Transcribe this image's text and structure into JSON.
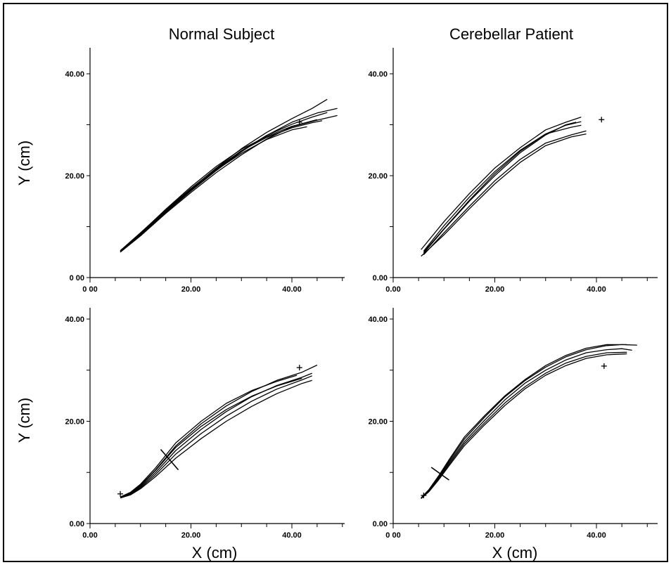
{
  "column_titles": [
    "Normal Subject",
    "Cerebellar Patient"
  ],
  "chart_data": [
    {
      "type": "line",
      "panel": "top-left",
      "title": "Normal Subject",
      "xlabel": "",
      "ylabel": "Y (cm)",
      "xlim": [
        0,
        50
      ],
      "ylim": [
        0,
        45
      ],
      "x_ticks": [
        0,
        20,
        40
      ],
      "x_tick_labels": [
        "0 00",
        "20.00",
        "40.00"
      ],
      "y_ticks": [
        0,
        20,
        40
      ],
      "y_tick_labels": [
        "0 00",
        "20.00",
        "40.00"
      ],
      "target_markers": [
        {
          "x": 41.5,
          "y": 30.5
        }
      ],
      "series": [
        {
          "x": [
            6,
            10,
            15,
            20,
            25,
            30,
            35,
            40,
            44,
            47
          ],
          "y": [
            5.2,
            8.6,
            13.1,
            17.4,
            21.5,
            25.3,
            28.5,
            31.2,
            33.2,
            35.0
          ]
        },
        {
          "x": [
            6,
            10,
            15,
            20,
            25,
            30,
            35,
            40,
            45,
            49
          ],
          "y": [
            5.0,
            8.3,
            12.8,
            17.0,
            21.0,
            24.7,
            27.9,
            30.5,
            32.3,
            33.2
          ]
        },
        {
          "x": [
            6,
            10,
            15,
            20,
            25,
            30,
            35,
            40,
            44,
            47
          ],
          "y": [
            5.1,
            8.4,
            12.9,
            17.2,
            21.2,
            24.9,
            27.9,
            30.1,
            31.5,
            32.4
          ]
        },
        {
          "x": [
            6,
            10,
            15,
            20,
            25,
            30,
            35,
            40,
            45,
            49
          ],
          "y": [
            5.0,
            8.2,
            12.6,
            16.7,
            20.6,
            24.1,
            27.2,
            29.6,
            30.9,
            31.8
          ]
        },
        {
          "x": [
            6,
            10,
            15,
            20,
            25,
            30,
            35,
            40,
            44,
            46
          ],
          "y": [
            5.3,
            8.8,
            13.3,
            17.5,
            21.4,
            24.9,
            27.5,
            29.4,
            30.4,
            30.8
          ]
        },
        {
          "x": [
            6,
            10,
            15,
            20,
            25,
            30,
            35,
            40,
            43
          ],
          "y": [
            5.2,
            8.5,
            13.0,
            17.2,
            21.1,
            24.4,
            27.1,
            29.0,
            29.6
          ]
        },
        {
          "x": [
            6,
            10,
            15,
            20,
            25,
            30,
            35,
            40,
            45
          ],
          "y": [
            5.1,
            8.7,
            13.4,
            17.8,
            21.8,
            25.2,
            27.7,
            29.7,
            31.0
          ]
        }
      ]
    },
    {
      "type": "line",
      "panel": "top-right",
      "title": "Cerebellar Patient",
      "xlabel": "",
      "ylabel": "",
      "xlim": [
        0,
        52
      ],
      "ylim": [
        0,
        45
      ],
      "x_ticks": [
        0,
        20,
        40
      ],
      "x_tick_labels": [
        "0.00",
        "20.00",
        "40.00"
      ],
      "y_ticks": [
        0,
        20,
        40
      ],
      "y_tick_labels": [
        "0.00",
        "20.00",
        "40.00"
      ],
      "target_markers": [
        {
          "x": 41,
          "y": 31
        }
      ],
      "series": [
        {
          "x": [
            5.5,
            10,
            15,
            20,
            25,
            30,
            34,
            37
          ],
          "y": [
            5.5,
            11,
            16.5,
            21.5,
            25.5,
            29,
            30.5,
            31.5
          ]
        },
        {
          "x": [
            6,
            10,
            15,
            20,
            25,
            30,
            34,
            37
          ],
          "y": [
            5.0,
            9.6,
            15.2,
            20.4,
            24.8,
            28.2,
            29.9,
            30.6
          ]
        },
        {
          "x": [
            6,
            10,
            15,
            20,
            25,
            30,
            35,
            38
          ],
          "y": [
            4.5,
            8.8,
            14.0,
            19.0,
            23.2,
            26.4,
            28.0,
            28.8
          ]
        },
        {
          "x": [
            5.5,
            10,
            15,
            20,
            25,
            30,
            35,
            38
          ],
          "y": [
            4.2,
            8.4,
            13.5,
            18.4,
            22.6,
            25.9,
            27.6,
            28.2
          ]
        },
        {
          "x": [
            6,
            10,
            15,
            20,
            25,
            30,
            34,
            36
          ],
          "y": [
            4.8,
            9.5,
            15.0,
            20.0,
            24.5,
            28.0,
            30.0,
            30.5
          ]
        },
        {
          "x": [
            6,
            10,
            15,
            20,
            25,
            30,
            35,
            37
          ],
          "y": [
            5.2,
            10.2,
            15.8,
            20.8,
            25.0,
            28.2,
            29.5,
            29.9
          ]
        }
      ]
    },
    {
      "type": "line",
      "panel": "bottom-left",
      "title": "",
      "xlabel": "X (cm)",
      "ylabel": "Y (cm)",
      "xlim": [
        0,
        50
      ],
      "ylim": [
        0,
        42
      ],
      "x_ticks": [
        0,
        20,
        40
      ],
      "x_tick_labels": [
        "0.00",
        "20.00",
        "40.00"
      ],
      "y_ticks": [
        0,
        20,
        40
      ],
      "y_tick_labels": [
        "0.00",
        "20.00",
        "40.00"
      ],
      "target_markers": [
        {
          "x": 41.5,
          "y": 30.5
        },
        {
          "x": 6,
          "y": 5.8
        }
      ],
      "annotation_strokes": [
        {
          "x": [
            14,
            17.5
          ],
          "y": [
            14.5,
            10.5
          ]
        }
      ],
      "series": [
        {
          "x": [
            6,
            8,
            10,
            13,
            17,
            22,
            27,
            32,
            37,
            42,
            45
          ],
          "y": [
            5.2,
            6.0,
            7.5,
            10.5,
            15.2,
            19.5,
            23.0,
            25.8,
            28.0,
            29.6,
            31.0
          ]
        },
        {
          "x": [
            6,
            8,
            10,
            13,
            17,
            22,
            27,
            32,
            37,
            42,
            44
          ],
          "y": [
            5.1,
            5.8,
            7.2,
            10.0,
            14.3,
            18.4,
            21.9,
            24.8,
            27.0,
            28.6,
            29.4
          ]
        },
        {
          "x": [
            6,
            8,
            10,
            13,
            17,
            22,
            27,
            32,
            37,
            42,
            44
          ],
          "y": [
            5.0,
            5.7,
            7.0,
            9.6,
            13.6,
            17.6,
            21.0,
            23.9,
            26.3,
            28.1,
            28.9
          ]
        },
        {
          "x": [
            6,
            8,
            10,
            13,
            17,
            22,
            27,
            32,
            37,
            42
          ],
          "y": [
            5.1,
            5.9,
            7.4,
            10.4,
            14.9,
            19.0,
            22.3,
            24.9,
            26.9,
            28.4
          ]
        },
        {
          "x": [
            6,
            8,
            10,
            13,
            17,
            22,
            27,
            32,
            37,
            42,
            44
          ],
          "y": [
            5.0,
            5.6,
            6.8,
            9.2,
            12.8,
            16.6,
            20.0,
            22.9,
            25.4,
            27.4,
            28.0
          ]
        },
        {
          "x": [
            6,
            8,
            10,
            13,
            17,
            22,
            27,
            32,
            37,
            41
          ],
          "y": [
            5.2,
            6.1,
            7.7,
            10.9,
            15.8,
            20.0,
            23.5,
            26.0,
            27.8,
            29.0
          ]
        }
      ]
    },
    {
      "type": "line",
      "panel": "bottom-right",
      "title": "",
      "xlabel": "X (cm)",
      "ylabel": "",
      "xlim": [
        0,
        52
      ],
      "ylim": [
        0,
        42
      ],
      "x_ticks": [
        0,
        20,
        40
      ],
      "x_tick_labels": [
        "0 00",
        "20.00",
        "40.00"
      ],
      "y_ticks": [
        0,
        20,
        40
      ],
      "y_tick_labels": [
        "0.00",
        "20.00",
        "40.00"
      ],
      "target_markers": [
        {
          "x": 41.5,
          "y": 30.8
        },
        {
          "x": 6,
          "y": 5.5
        }
      ],
      "annotation_strokes": [
        {
          "x": [
            7.5,
            11
          ],
          "y": [
            11,
            8.5
          ]
        }
      ],
      "series": [
        {
          "x": [
            5.5,
            7,
            9,
            11,
            14,
            18,
            22,
            26,
            30,
            34,
            38,
            42,
            45,
            48
          ],
          "y": [
            5.0,
            6.5,
            9.2,
            12.2,
            16.5,
            20.8,
            24.8,
            28.0,
            30.6,
            32.6,
            34.0,
            34.8,
            35.0,
            34.9
          ]
        },
        {
          "x": [
            5.5,
            7,
            9,
            11,
            14,
            18,
            22,
            26,
            30,
            34,
            38,
            42,
            45,
            47
          ],
          "y": [
            5.0,
            6.4,
            9.0,
            11.9,
            16.0,
            20.2,
            24.2,
            27.5,
            30.0,
            32.0,
            33.4,
            34.0,
            34.2,
            33.9
          ]
        },
        {
          "x": [
            5.5,
            7,
            9,
            11,
            14,
            18,
            22,
            26,
            30,
            34,
            38,
            42,
            46
          ],
          "y": [
            4.9,
            6.3,
            8.8,
            11.6,
            15.6,
            19.7,
            23.6,
            26.8,
            29.4,
            31.4,
            32.7,
            33.4,
            33.5
          ]
        },
        {
          "x": [
            5.5,
            7,
            9,
            11,
            14,
            18,
            22,
            26,
            30,
            34,
            38,
            42,
            46
          ],
          "y": [
            5.0,
            6.6,
            9.4,
            12.5,
            16.9,
            21.1,
            25.0,
            28.2,
            30.9,
            32.9,
            34.3,
            35.0,
            35.0
          ]
        },
        {
          "x": [
            5.5,
            7,
            9,
            11,
            14,
            18,
            22,
            26,
            30,
            34,
            38,
            42,
            46
          ],
          "y": [
            4.9,
            6.2,
            8.6,
            11.3,
            15.2,
            19.3,
            23.1,
            26.4,
            29.0,
            30.9,
            32.3,
            33.0,
            33.2
          ]
        }
      ]
    }
  ]
}
